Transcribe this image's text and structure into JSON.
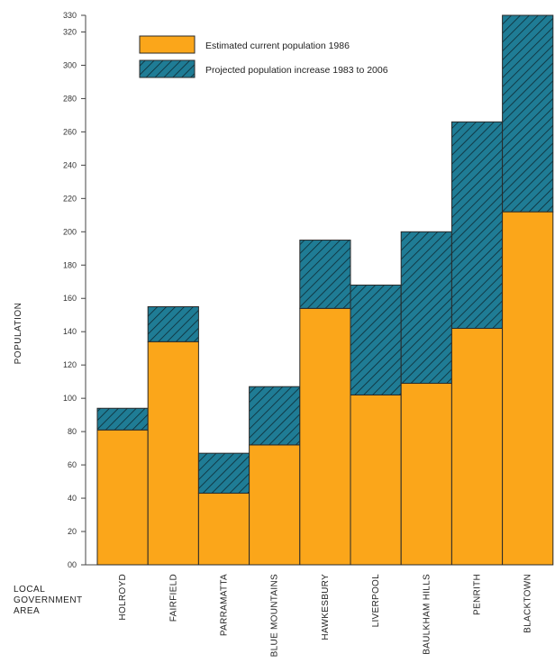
{
  "chart_data": {
    "type": "bar",
    "stacked": true,
    "categories": [
      "HOLROYD",
      "FAIRFIELD",
      "PARRAMATTA",
      "BLUE MOUNTAINS",
      "HAWKESBURY",
      "LIVERPOOL",
      "BAULKHAM HILLS",
      "PENRITH",
      "BLACKTOWN"
    ],
    "series": [
      {
        "name": "Estimated current population 1986",
        "values": [
          81,
          134,
          43,
          72,
          154,
          102,
          109,
          142,
          212
        ],
        "color": "#FBA61A"
      },
      {
        "name": "Projected population increase 1983 to 2006",
        "values": [
          13,
          21,
          24,
          35,
          41,
          66,
          91,
          124,
          118
        ],
        "color": "#1F7C95",
        "pattern": "diagonal-hatch"
      }
    ],
    "ylabel": "POPULATION",
    "xlabel": "LOCAL GOVERNMENT AREA",
    "xlabel_lines": [
      "LOCAL",
      "GOVERNMENT",
      "AREA"
    ],
    "ylim": [
      0,
      330
    ],
    "yticks": [
      0,
      20,
      40,
      60,
      80,
      100,
      120,
      140,
      160,
      180,
      200,
      220,
      240,
      260,
      280,
      300,
      320,
      330
    ],
    "ytick_labels": [
      "00",
      "20",
      "40",
      "60",
      "80",
      "100",
      "120",
      "140",
      "160",
      "180",
      "200",
      "220",
      "240",
      "260",
      "280",
      "300",
      "320",
      "330"
    ],
    "legend_position": "top-left",
    "grid": false
  }
}
